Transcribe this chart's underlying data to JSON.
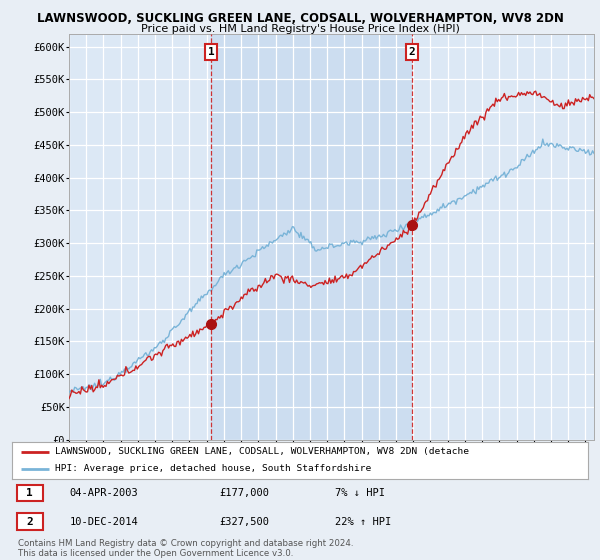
{
  "title": "LAWNSWOOD, SUCKLING GREEN LANE, CODSALL, WOLVERHAMPTON, WV8 2DN",
  "subtitle": "Price paid vs. HM Land Registry's House Price Index (HPI)",
  "background_color": "#e8eef5",
  "plot_bg_color": "#dce8f5",
  "plot_bg_highlight": "#ccddf0",
  "grid_color": "#c8d8e8",
  "y_ticks": [
    0,
    50000,
    100000,
    150000,
    200000,
    250000,
    300000,
    350000,
    400000,
    450000,
    500000,
    550000,
    600000
  ],
  "y_tick_labels": [
    "£0",
    "£50K",
    "£100K",
    "£150K",
    "£200K",
    "£250K",
    "£300K",
    "£350K",
    "£400K",
    "£450K",
    "£500K",
    "£550K",
    "£600K"
  ],
  "ylim": [
    0,
    620000
  ],
  "x_start_year": 1995,
  "x_end_year": 2025,
  "sale1_date": 2003.25,
  "sale1_price": 177000,
  "sale1_label": "1",
  "sale2_date": 2014.94,
  "sale2_price": 327500,
  "sale2_label": "2",
  "legend_line1": "LAWNSWOOD, SUCKLING GREEN LANE, CODSALL, WOLVERHAMPTON, WV8 2DN (detache",
  "legend_line2": "HPI: Average price, detached house, South Staffordshire",
  "table_row1": [
    "1",
    "04-APR-2003",
    "£177,000",
    "7% ↓ HPI"
  ],
  "table_row2": [
    "2",
    "10-DEC-2014",
    "£327,500",
    "22% ↑ HPI"
  ],
  "footer": "Contains HM Land Registry data © Crown copyright and database right 2024.\nThis data is licensed under the Open Government Licence v3.0.",
  "hpi_line_color": "#7ab4d8",
  "price_line_color": "#cc2222",
  "sale_marker_color": "#aa1111",
  "vline_color": "#cc2222"
}
